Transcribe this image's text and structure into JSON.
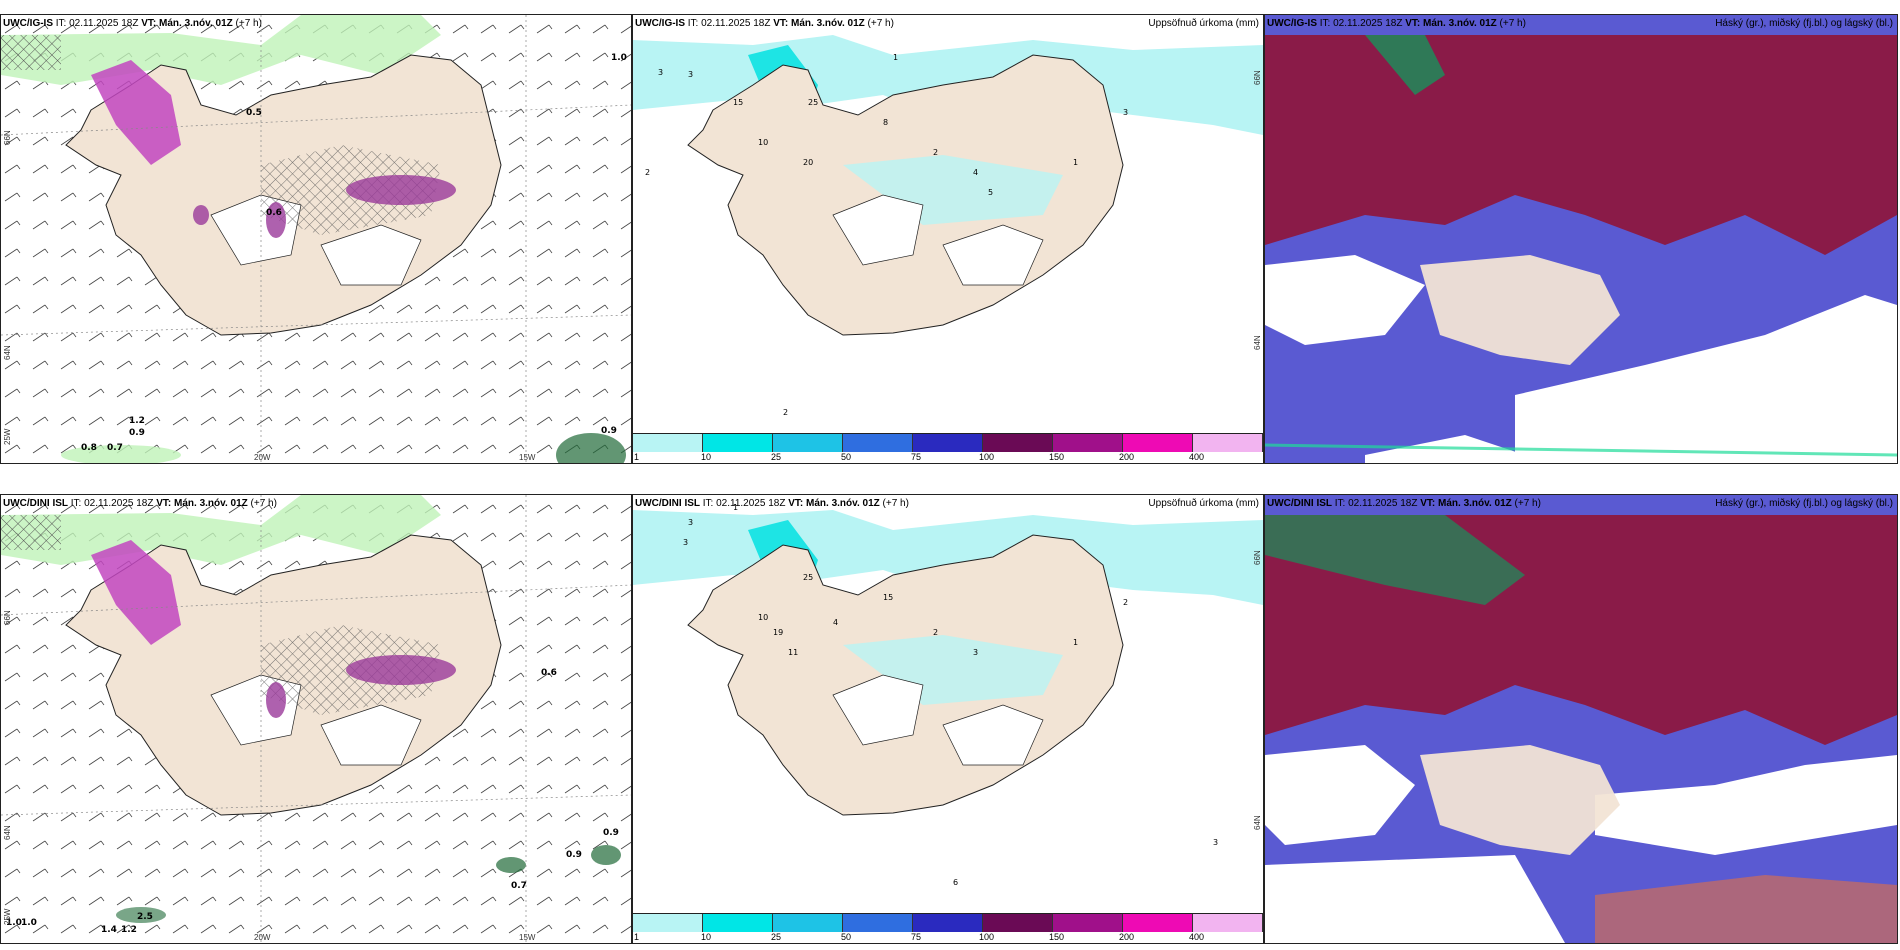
{
  "rows": [
    {
      "model": "UWC/IG-IS",
      "it_label": "IT:",
      "it_value": "02.11.2025 18Z",
      "vt_label": "VT:",
      "vt_value": "Mán. 3.nóv. 01Z",
      "lead": "(+7 h)"
    },
    {
      "model": "UWC/DINI ISL",
      "it_label": "IT:",
      "it_value": "02.11.2025 18Z",
      "vt_label": "VT:",
      "vt_value": "Mán. 3.nóv. 01Z",
      "lead": "(+7 h)"
    }
  ],
  "panel_titles": {
    "precip": "Uppsöfnuð úrkoma (mm)",
    "clouds": "Háský (gr.), miðský (fj.bl.) og lágský (bl.)"
  },
  "colorbar": {
    "labels": [
      "1",
      "10",
      "25",
      "50",
      "75",
      "100",
      "150",
      "200",
      "400"
    ],
    "colors": [
      "#b8f4f4",
      "#00e6e6",
      "#1ec3e6",
      "#2f6ee0",
      "#2a2abf",
      "#6a0a55",
      "#a0108a",
      "#ee0ab4",
      "#f2b4f0"
    ]
  },
  "axes": {
    "lon_labels": [
      "20W",
      "15W"
    ],
    "lat_labels_left": [
      "66N",
      "64N",
      "25W"
    ],
    "lat_labels_precip": [
      "66N",
      "64N"
    ]
  },
  "map_values": {
    "wind_top": [
      "1.0",
      "0.5",
      "0.6",
      "1.2",
      "0.9",
      "0.9",
      "0.8",
      "0.7"
    ],
    "wind_bottom": [
      "0.6",
      "0.9",
      "0.9",
      "0.7",
      "1.0",
      "1.0",
      "2.5",
      "1.4",
      "1.2"
    ],
    "precip_top": [
      "1",
      "2",
      "3",
      "3",
      "10",
      "15",
      "20",
      "25",
      "4",
      "5",
      "8",
      "2",
      "1",
      "3",
      "2"
    ],
    "precip_bottom": [
      "3",
      "3",
      "10",
      "19",
      "11",
      "25",
      "15",
      "4",
      "2",
      "1",
      "3",
      "6",
      "2",
      "1",
      "3"
    ]
  },
  "colors": {
    "land": "#f2e4d5",
    "lowcloud": "#5a5ad2",
    "highcloud": "#8a1b48",
    "midcloud": "#1f8a5a",
    "precip_light": "#b8f4f4",
    "snow": "#c246c0",
    "green": "#bff2b8"
  }
}
